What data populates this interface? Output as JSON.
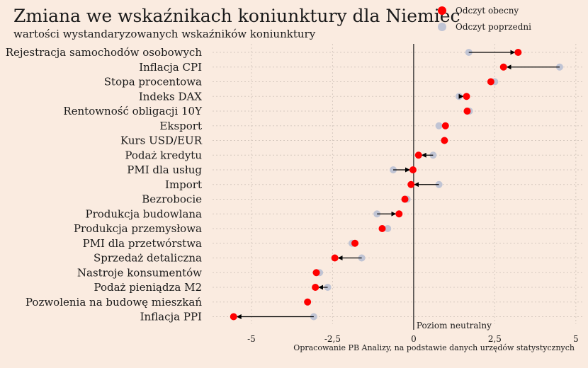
{
  "title": "Zmiana we wskaźnikach koniunktury dla Niemiec",
  "subtitle": "wartości wystandaryzowanych wskaźników koniunktury",
  "source": "Opracowanie PB Analizy, na podstawie danych urzędów statystycznych",
  "legend": {
    "current": "Odczyt obecny",
    "previous": "Odczyt poprzedni"
  },
  "colors": {
    "current": "#ff0000",
    "previous": "#c0c4d4",
    "arrow": "#000000",
    "background": "#faebe0",
    "grid": "#d6c9bf"
  },
  "chart_data": {
    "type": "dot-arrow",
    "xlim": [
      -6.2,
      5.2
    ],
    "xticks": [
      -5,
      -2.5,
      0,
      2.5,
      5
    ],
    "xtick_labels": [
      "-5",
      "-2,5",
      "0",
      "2,5",
      "5"
    ],
    "reference_line": {
      "x": 0,
      "label": "Poziom neutralny"
    },
    "grid": true,
    "categories": [
      "Rejestracja samochodów osobowych",
      "Inflacja CPI",
      "Stopa procentowa",
      "Indeks DAX",
      "Rentowność obligacji 10Y",
      "Eksport",
      "Kurs USD/EUR",
      "Podaż kredytu",
      "PMI dla usług",
      "Import",
      "Bezrobocie",
      "Produkcja budowlana",
      "Produkcja przemysłowa",
      "PMI dla przetwórstwa",
      "Sprzedaż detaliczna",
      "Nastroje konsumentów",
      "Podaż pieniądza M2",
      "Pozwolenia na budowę mieszkań",
      "Inflacja PPI"
    ],
    "series": [
      {
        "name": "Odczyt obecny",
        "values": [
          3.22,
          2.77,
          2.38,
          1.63,
          1.65,
          0.98,
          0.95,
          0.15,
          -0.02,
          -0.08,
          -0.27,
          -0.45,
          -0.97,
          -1.81,
          -2.43,
          -3.0,
          -3.03,
          -3.27,
          -5.55
        ]
      },
      {
        "name": "Odczyt poprzedni",
        "values": [
          1.7,
          4.5,
          2.5,
          1.4,
          1.72,
          0.78,
          0.95,
          0.6,
          -0.63,
          0.78,
          -0.2,
          -1.13,
          -0.8,
          -1.9,
          -1.6,
          -2.9,
          -2.65,
          -3.27,
          -3.08
        ]
      }
    ]
  }
}
